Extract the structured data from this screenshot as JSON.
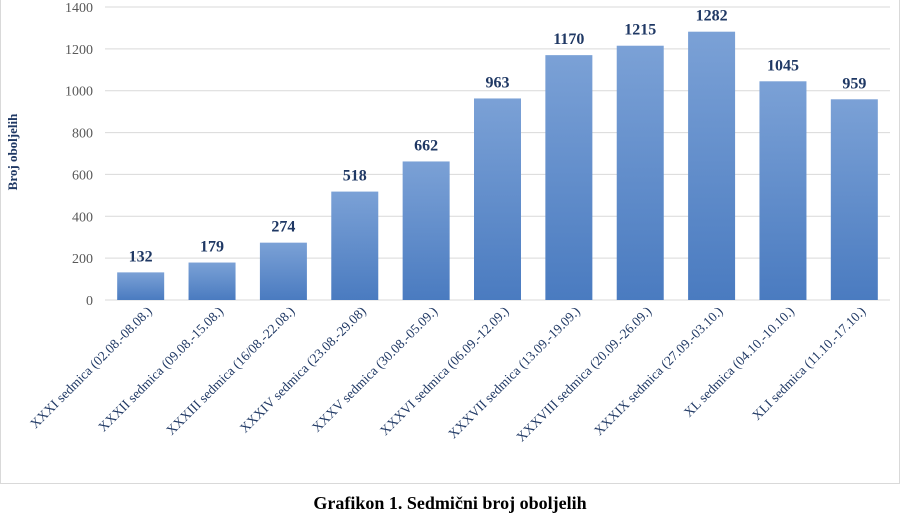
{
  "chart_data": {
    "type": "bar",
    "title": "Grafikon 1. Sedmični broj oboljelih",
    "ylabel": "Broj oboljelih",
    "xlabel": "",
    "ylim": [
      0,
      1400
    ],
    "yticks": [
      0,
      200,
      400,
      600,
      800,
      1000,
      1200,
      1400
    ],
    "grid": true,
    "categories": [
      "XXXI sedmica (02.08.-08.08.)",
      "XXXII sedmica (09.08.-15.08.)",
      "XXXIII sedmica (16/08.-22.08.)",
      "XXXIV sedmica (23.08.-29.08)",
      "XXXV sedmica (30.08.-05.09.)",
      "XXXVI sedmica (06.09.-12.09.)",
      "XXXVII sedmica (13.09.-19.09.)",
      "XXXVIII sedmica (20.09.-26.09.)",
      "XXXIX sedmica (27.09.-03.10.)",
      "XL sedmica (04.10.-10.10.)",
      "XLI sedmica (11.10.-17.10.)"
    ],
    "values": [
      132,
      179,
      274,
      518,
      662,
      963,
      1170,
      1215,
      1282,
      1045,
      959
    ],
    "bar_color": "#4a7bc0",
    "bar_color_light": "#7ba1d6",
    "label_color": "#1f3864"
  }
}
